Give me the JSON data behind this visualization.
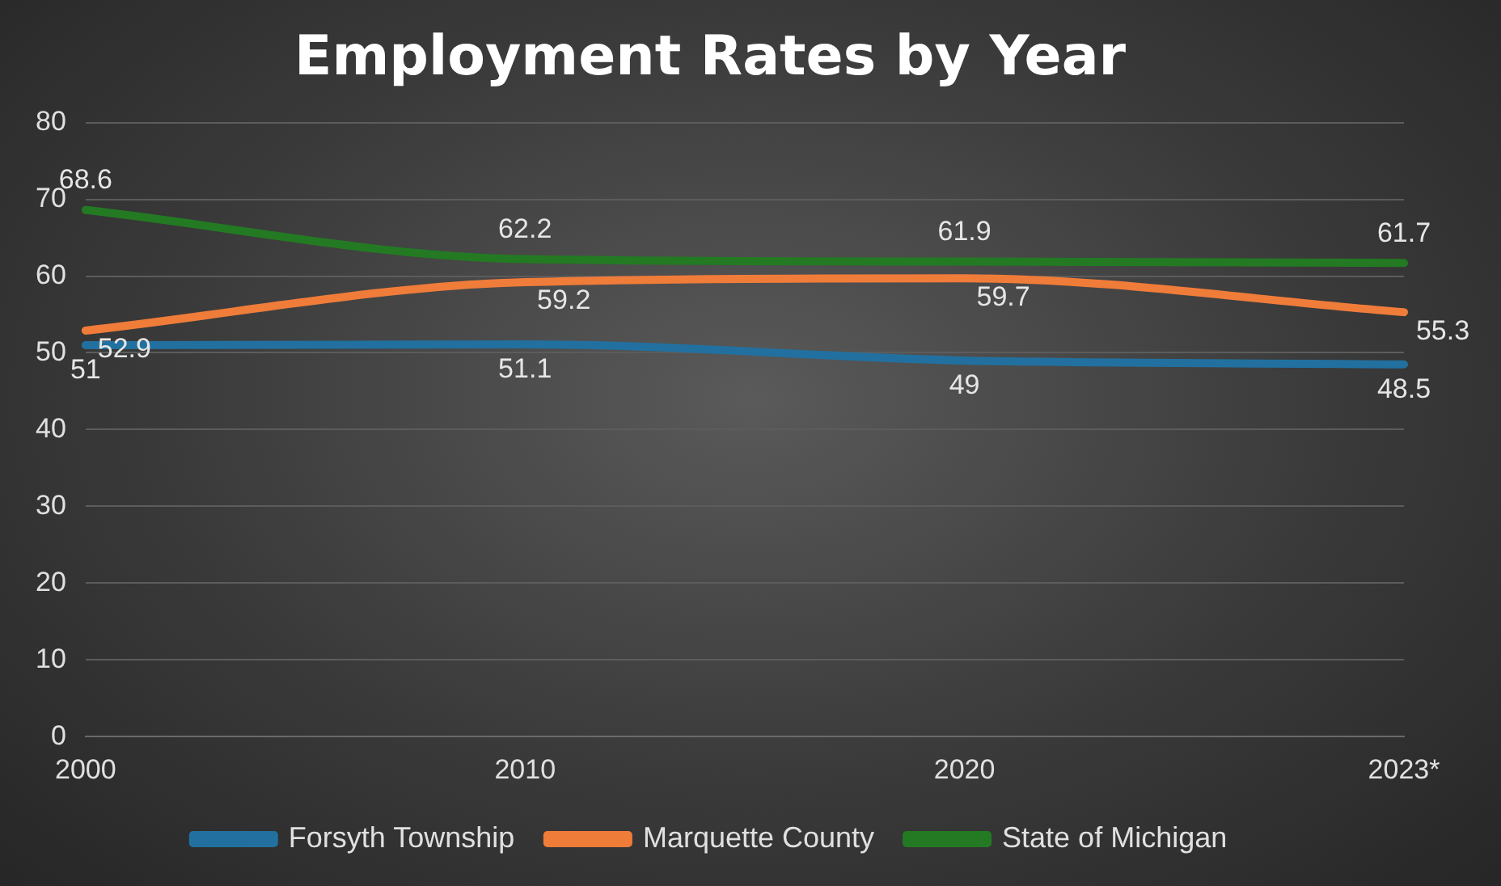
{
  "chart_data": {
    "type": "line",
    "title": "Employment Rates by Year",
    "categories": [
      "2000",
      "2010",
      "2020",
      "2023*"
    ],
    "series": [
      {
        "name": "Forsyth Township",
        "color": "#22709f",
        "values": [
          51,
          51.1,
          49,
          48.5
        ]
      },
      {
        "name": "Marquette County",
        "color": "#f07c3a",
        "values": [
          52.9,
          59.2,
          59.7,
          55.3
        ]
      },
      {
        "name": "State of Michigan",
        "color": "#237a23",
        "values": [
          68.6,
          62.2,
          61.9,
          61.7
        ]
      }
    ],
    "ylim": [
      0,
      80
    ],
    "yticks": [
      0,
      10,
      20,
      30,
      40,
      50,
      60,
      70,
      80
    ],
    "grid": "y",
    "legend": "bottom",
    "data_labels": true,
    "marker": "none",
    "line_style": "solid"
  }
}
